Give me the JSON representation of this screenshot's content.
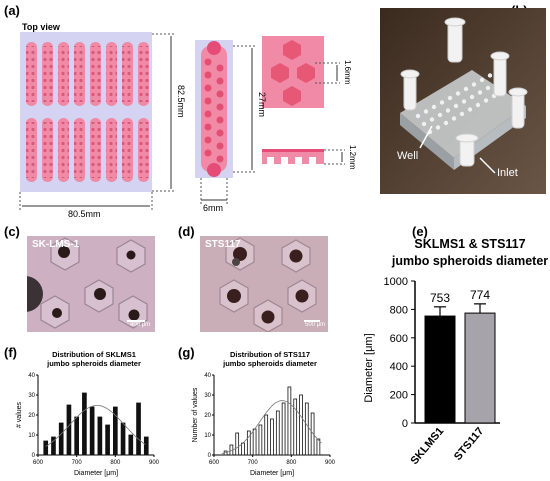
{
  "panels": {
    "a": "(a)",
    "b": "(b)",
    "c": "(c)",
    "d": "(d)",
    "e": "(e)",
    "f": "(f)",
    "g": "(g)"
  },
  "panel_a": {
    "top_view": "Top view",
    "dim_height": "82.5mm",
    "dim_width": "80.5mm",
    "dim_channel_length": "27mm",
    "dim_channel_width": "6mm",
    "dim_pitch": "1.6mm",
    "dim_depth": "1.2mm"
  },
  "panel_b": {
    "well_label": "Well",
    "inlet_label": "Inlet"
  },
  "panel_c": {
    "cell_line": "SK-LMS-1",
    "scale": "400 μm"
  },
  "panel_d": {
    "cell_line": "STS117",
    "scale": "500 μm"
  },
  "chart_data": [
    {
      "id": "e",
      "type": "bar",
      "title": "SKLMS1 & STS117\njumbo spheroids diameter",
      "categories": [
        "SKLMS1",
        "STS117"
      ],
      "values": [
        753,
        774
      ],
      "errors": [
        65,
        65
      ],
      "data_labels": [
        "753",
        "774"
      ],
      "colors": [
        "#000000",
        "#a6a3ab"
      ],
      "ylabel": "Diameter [μm]",
      "ylim": [
        0,
        1000
      ],
      "yticks": [
        0,
        200,
        400,
        600,
        800,
        1000
      ]
    },
    {
      "id": "f",
      "type": "bar",
      "title": "Distribution of SKLMS1\njumbo spheroids diameter",
      "xlabel": "Diameter [μm]",
      "ylabel": "# values",
      "xlim": [
        600,
        900
      ],
      "ylim": [
        0,
        40
      ],
      "xticks": [
        600,
        700,
        800,
        900
      ],
      "yticks": [
        0,
        10,
        20,
        30,
        40
      ],
      "bins": [
        620,
        640,
        660,
        680,
        700,
        720,
        740,
        760,
        780,
        800,
        820,
        840,
        860,
        880
      ],
      "values": [
        7,
        9,
        16,
        25,
        19,
        31,
        24,
        19,
        15,
        24,
        16,
        10,
        26,
        9
      ],
      "fit": "normal"
    },
    {
      "id": "g",
      "type": "bar",
      "title": "Distribution of STS117\njumbo spheroids diameter",
      "xlabel": "Diameter [μm]",
      "ylabel": "Number of values",
      "xlim": [
        600,
        900
      ],
      "ylim": [
        0,
        40
      ],
      "xticks": [
        600,
        700,
        800,
        900
      ],
      "yticks": [
        0,
        10,
        20,
        30,
        40
      ],
      "bins": [
        630,
        645,
        660,
        675,
        690,
        705,
        720,
        735,
        750,
        765,
        780,
        795,
        810,
        825,
        840,
        855,
        870
      ],
      "values": [
        2,
        5,
        11,
        6,
        12,
        13,
        15,
        20,
        18,
        22,
        26,
        34,
        28,
        30,
        26,
        21,
        8
      ],
      "fit": "normal"
    }
  ]
}
